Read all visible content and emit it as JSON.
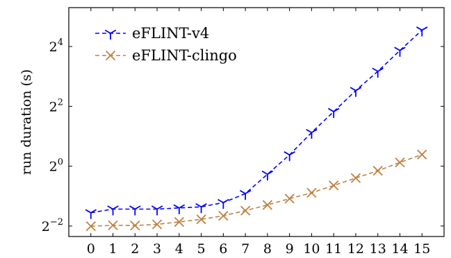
{
  "chart_data": {
    "type": "line",
    "title": "",
    "xlabel": "",
    "ylabel": "run duration (s)",
    "y_scale": "log2",
    "x": [
      0,
      1,
      2,
      3,
      4,
      5,
      6,
      7,
      8,
      9,
      10,
      11,
      12,
      13,
      14,
      15
    ],
    "xlim": [
      -1,
      16
    ],
    "ylim_log2": [
      -2.35,
      5.3
    ],
    "x_ticks": [
      "0",
      "1",
      "2",
      "3",
      "4",
      "5",
      "6",
      "7",
      "8",
      "9",
      "10",
      "11",
      "12",
      "13",
      "14",
      "15"
    ],
    "y_ticks": [
      {
        "base": "2",
        "exp": "−2",
        "log2": -2
      },
      {
        "base": "2",
        "exp": "0",
        "log2": 0
      },
      {
        "base": "2",
        "exp": "2",
        "log2": 2
      },
      {
        "base": "2",
        "exp": "4",
        "log2": 4
      }
    ],
    "grid": false,
    "legend_position": "top-left",
    "series": [
      {
        "name": "eFLINT-v4",
        "color": "#0000ff",
        "marker": "tri-down",
        "line": "dashed",
        "values": [
          0.34,
          0.37,
          0.37,
          0.37,
          0.38,
          0.39,
          0.43,
          0.53,
          0.83,
          1.3,
          2.18,
          3.54,
          5.77,
          9.0,
          14.6,
          23.4
        ]
      },
      {
        "name": "eFLINT-clingo",
        "color": "#bf8040",
        "marker": "x",
        "line": "dashed",
        "values": [
          0.249,
          0.254,
          0.253,
          0.26,
          0.275,
          0.292,
          0.317,
          0.357,
          0.407,
          0.472,
          0.54,
          0.64,
          0.76,
          0.9,
          1.09,
          1.31
        ]
      }
    ]
  }
}
